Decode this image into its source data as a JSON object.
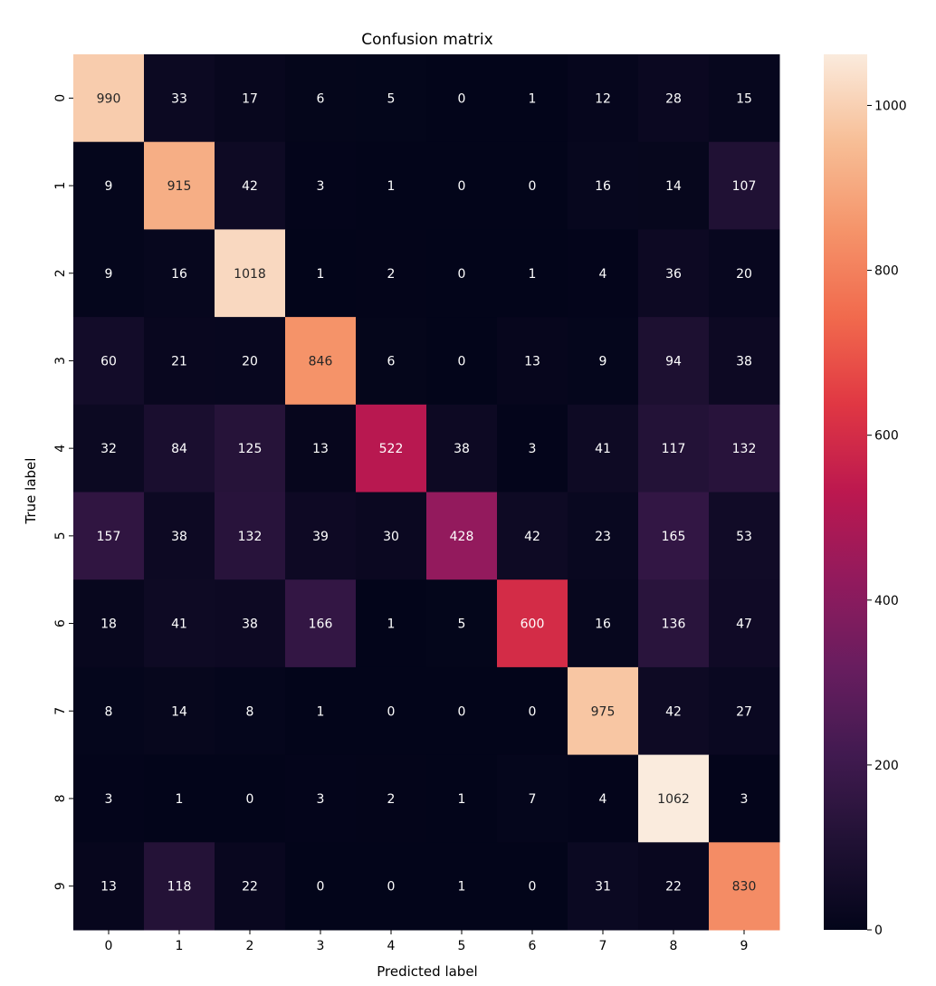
{
  "chart_data": {
    "type": "heatmap",
    "title": "Confusion matrix",
    "xlabel": "Predicted label",
    "ylabel": "True label",
    "x_categories": [
      "0",
      "1",
      "2",
      "3",
      "4",
      "5",
      "6",
      "7",
      "8",
      "9"
    ],
    "y_categories": [
      "0",
      "1",
      "2",
      "3",
      "4",
      "5",
      "6",
      "7",
      "8",
      "9"
    ],
    "values": [
      [
        990,
        33,
        17,
        6,
        5,
        0,
        1,
        12,
        28,
        15
      ],
      [
        9,
        915,
        42,
        3,
        1,
        0,
        0,
        16,
        14,
        107
      ],
      [
        9,
        16,
        1018,
        1,
        2,
        0,
        1,
        4,
        36,
        20
      ],
      [
        60,
        21,
        20,
        846,
        6,
        0,
        13,
        9,
        94,
        38
      ],
      [
        32,
        84,
        125,
        13,
        522,
        38,
        3,
        41,
        117,
        132
      ],
      [
        157,
        38,
        132,
        39,
        30,
        428,
        42,
        23,
        165,
        53
      ],
      [
        18,
        41,
        38,
        166,
        1,
        5,
        600,
        16,
        136,
        47
      ],
      [
        8,
        14,
        8,
        1,
        0,
        0,
        0,
        975,
        42,
        27
      ],
      [
        3,
        1,
        0,
        3,
        2,
        1,
        7,
        4,
        1062,
        3
      ],
      [
        13,
        118,
        22,
        0,
        0,
        1,
        0,
        31,
        22,
        830
      ]
    ],
    "colorbar": {
      "range": [
        0,
        1062
      ],
      "ticks": [
        "0",
        "200",
        "400",
        "600",
        "800",
        "1000"
      ],
      "colormap": "rocket"
    },
    "grid": false,
    "legend": "colorbar-right"
  }
}
